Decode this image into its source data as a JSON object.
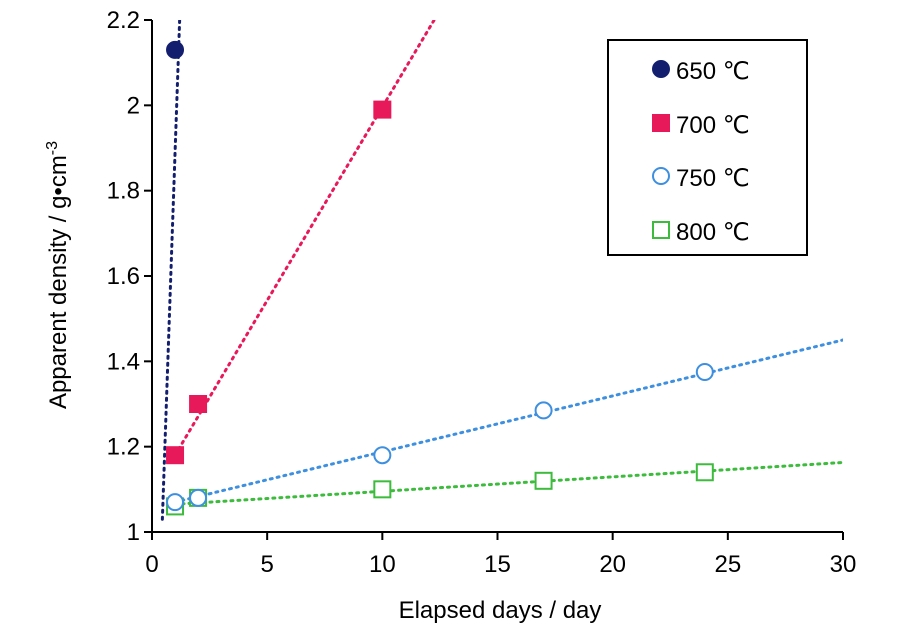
{
  "chart_data": {
    "type": "scatter",
    "xlabel": "Elapsed days / day",
    "ylabel": "Apparent density / g•cm",
    "ylabel_sup": "-3",
    "xlim": [
      0,
      30
    ],
    "ylim": [
      1,
      2.2
    ],
    "xticks": [
      0,
      5,
      10,
      15,
      20,
      25,
      30
    ],
    "yticks": [
      1,
      1.2,
      1.4,
      1.6,
      1.8,
      2,
      2.2
    ],
    "xtick_labels": [
      "0",
      "5",
      "10",
      "15",
      "20",
      "25",
      "30"
    ],
    "ytick_labels": [
      "1",
      "1.2",
      "1.4",
      "1.6",
      "1.8",
      "2",
      "2.2"
    ],
    "grid": false,
    "legend_position": "top-right",
    "series": [
      {
        "name": "650 ℃",
        "marker": "filled-circle",
        "color": "#131f6e",
        "points": [
          [
            1,
            2.13
          ]
        ],
        "trendline": [
          [
            0.45,
            1.03
          ],
          [
            1.2,
            2.2
          ]
        ]
      },
      {
        "name": "700 ℃",
        "marker": "filled-square",
        "color": "#e8195a",
        "points": [
          [
            1,
            1.18
          ],
          [
            2,
            1.3
          ],
          [
            10,
            1.99
          ]
        ],
        "trendline": [
          [
            1,
            1.18
          ],
          [
            12.25,
            2.2
          ]
        ]
      },
      {
        "name": "750 ℃",
        "marker": "open-circle",
        "color": "#3d8fe0",
        "points": [
          [
            1,
            1.07
          ],
          [
            2,
            1.08
          ],
          [
            10,
            1.18
          ],
          [
            17,
            1.285
          ],
          [
            24,
            1.375
          ]
        ],
        "trendline": [
          [
            1,
            1.07
          ],
          [
            30,
            1.45
          ]
        ]
      },
      {
        "name": "800 ℃",
        "marker": "open-square",
        "color": "#3cbb3c",
        "points": [
          [
            1,
            1.06
          ],
          [
            2,
            1.08
          ],
          [
            10,
            1.1
          ],
          [
            17,
            1.12
          ],
          [
            24,
            1.14
          ]
        ],
        "trendline": [
          [
            1,
            1.065
          ],
          [
            30,
            1.163
          ]
        ]
      }
    ]
  }
}
